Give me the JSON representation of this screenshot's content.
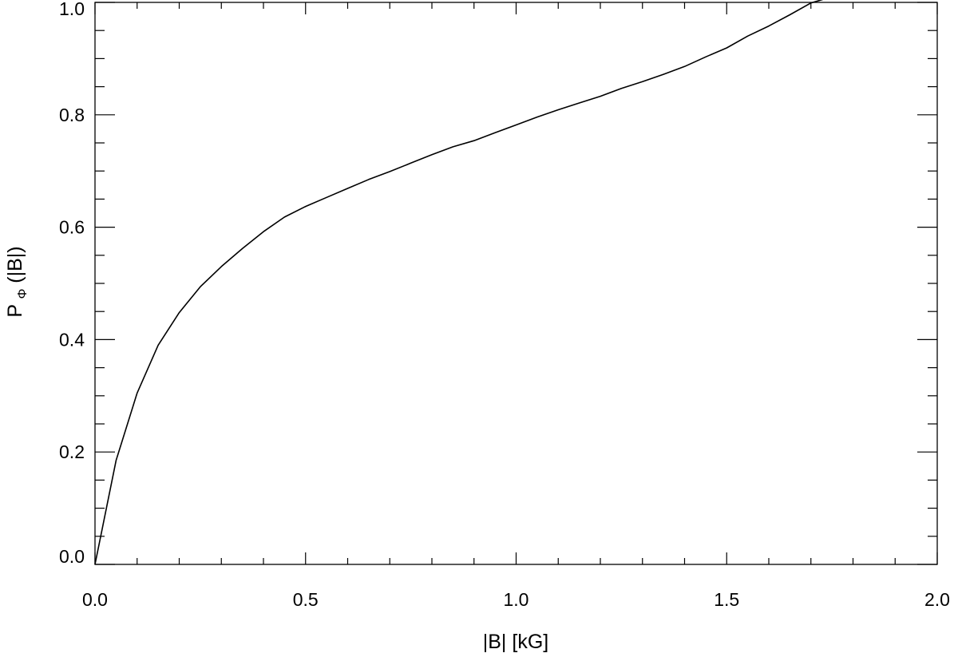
{
  "chart_data": {
    "type": "line",
    "title": "",
    "xlabel": "|B|  [kG]",
    "ylabel_main": "P",
    "ylabel_sub": "Φ",
    "ylabel_tail": "(|B|)",
    "xlim": [
      0.0,
      2.0
    ],
    "ylim": [
      0.0,
      1.0
    ],
    "x_major_ticks": [
      0.0,
      0.5,
      1.0,
      1.5,
      2.0
    ],
    "x_tick_labels": [
      "0.0",
      "0.5",
      "1.0",
      "1.5",
      "2.0"
    ],
    "x_minor_step": 0.1,
    "y_major_ticks": [
      0.0,
      0.2,
      0.4,
      0.6,
      0.8,
      1.0
    ],
    "y_tick_labels": [
      "0.0",
      "0.2",
      "0.4",
      "0.6",
      "0.8",
      "1.0"
    ],
    "y_minor_step": 0.05,
    "grid": false,
    "legend": "none",
    "line_color": "#000000",
    "series": [
      {
        "x": [
          0.0,
          0.05,
          0.1,
          0.15,
          0.2,
          0.25,
          0.3,
          0.35,
          0.4,
          0.45,
          0.5,
          0.55,
          0.6,
          0.65,
          0.7,
          0.75,
          0.8,
          0.85,
          0.9,
          0.95,
          1.0,
          1.05,
          1.1,
          1.15,
          1.2,
          1.25,
          1.3,
          1.35,
          1.4,
          1.45,
          1.5,
          1.55,
          1.6,
          1.65,
          1.7,
          1.75,
          1.8,
          1.85
        ],
        "y": [
          0.0,
          0.185,
          0.305,
          0.39,
          0.448,
          0.494,
          0.53,
          0.562,
          0.592,
          0.618,
          0.637,
          0.653,
          0.669,
          0.685,
          0.699,
          0.714,
          0.729,
          0.743,
          0.754,
          0.768,
          0.782,
          0.796,
          0.809,
          0.821,
          0.833,
          0.847,
          0.859,
          0.872,
          0.886,
          0.903,
          0.919,
          0.94,
          0.958,
          0.978,
          0.999,
          1.01,
          1.012,
          1.012
        ]
      }
    ]
  }
}
